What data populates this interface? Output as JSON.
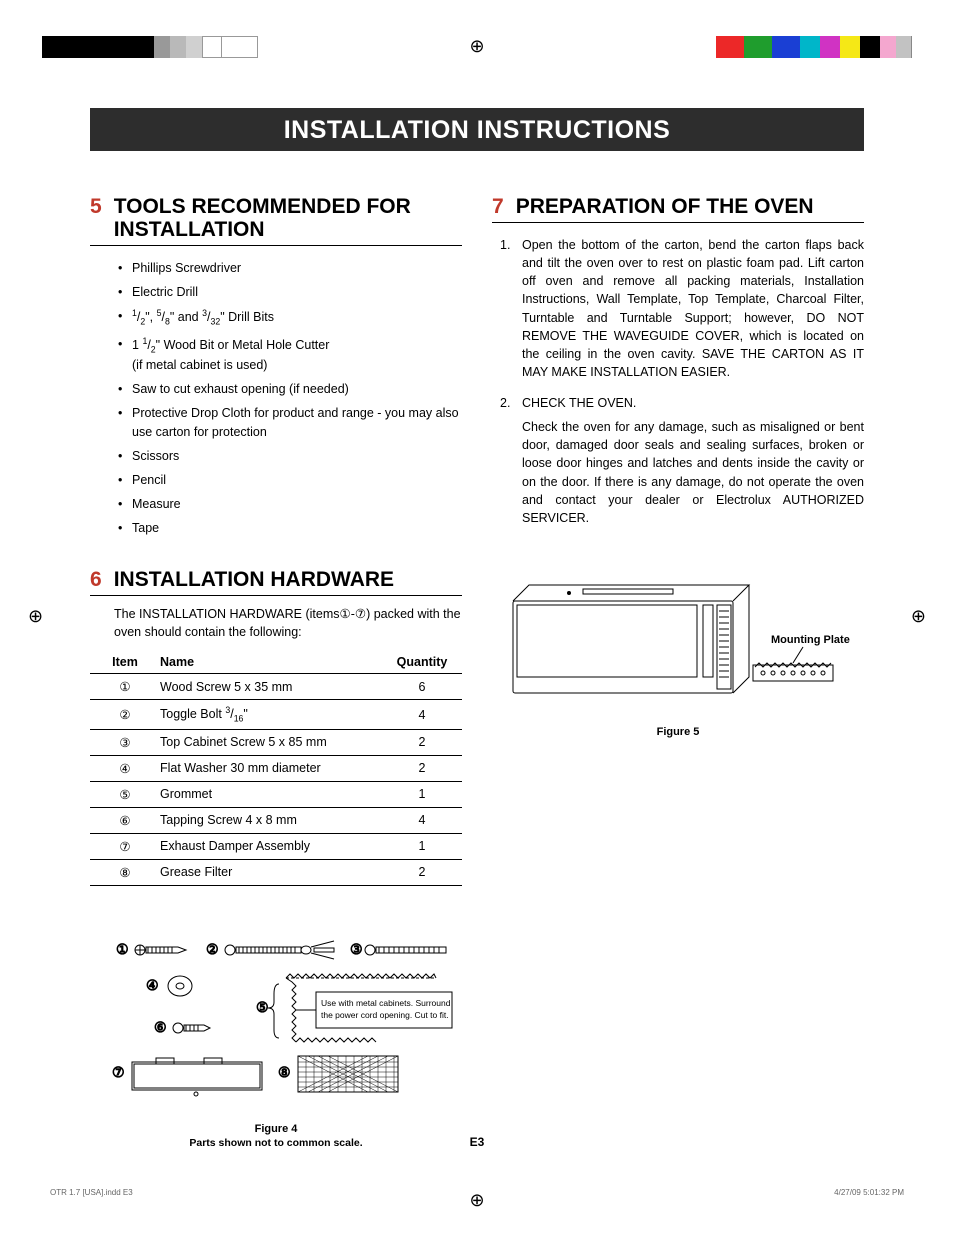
{
  "print_marks": {
    "left_colors": [
      "#000000",
      "#000000",
      "#000000",
      "#000000",
      "#999999",
      "#b9b9b9",
      "#d0d0d0",
      "#ffffff",
      "#ffffff"
    ],
    "left_widths": [
      28,
      28,
      28,
      28,
      16,
      16,
      16,
      20,
      20
    ],
    "right_colors": [
      "#ec2828",
      "#1f9d2d",
      "#1a3fd4",
      "#00b6c9",
      "#d033c3",
      "#f5e816",
      "#000000",
      "#f4a7cf",
      "#c2c2c2"
    ],
    "right_widths": [
      28,
      28,
      28,
      20,
      20,
      20,
      20,
      16,
      16
    ]
  },
  "page_header": "INSTALLATION INSTRUCTIONS",
  "section5": {
    "num": "5",
    "title": "TOOLS RECOMMENDED FOR INSTALLATION",
    "items": [
      "Phillips Screwdriver",
      "Electric Drill",
      "1/2\", 5/8\" and 3/32\" Drill Bits",
      "1 1/2\" Wood Bit or Metal Hole Cutter (if metal cabinet is used)",
      "Saw to cut exhaust opening (if needed)",
      "Protective Drop Cloth for product and range - you may also use carton for protection",
      "Scissors",
      "Pencil",
      "Measure",
      "Tape"
    ]
  },
  "section6": {
    "num": "6",
    "title": "INSTALLATION HARDWARE",
    "intro": "The INSTALLATION HARDWARE (items①-⑦) packed with the oven should contain the following:",
    "table": {
      "headers": [
        "Item",
        "Name",
        "Quantity"
      ],
      "rows": [
        [
          "①",
          "Wood Screw 5 x 35 mm",
          "6"
        ],
        [
          "②",
          "Toggle Bolt 3/16\"",
          "4"
        ],
        [
          "③",
          "Top Cabinet Screw 5 x 85 mm",
          "2"
        ],
        [
          "④",
          "Flat Washer 30 mm diameter",
          "2"
        ],
        [
          "⑤",
          "Grommet",
          "1"
        ],
        [
          "⑥",
          "Tapping Screw 4 x 8 mm",
          "4"
        ],
        [
          "⑦",
          "Exhaust Damper Assembly",
          "1"
        ],
        [
          "⑧",
          "Grease Filter",
          "2"
        ]
      ]
    }
  },
  "section7": {
    "num": "7",
    "title": "PREPARATION OF THE OVEN",
    "steps": [
      {
        "n": "1.",
        "text": "Open the bottom of the carton, bend the carton flaps back and tilt the oven over to rest on plastic foam pad. Lift carton off oven and remove all packing materials, Installation Instructions, Wall Template, Top Template, Charcoal Filter, Turntable and Turntable Support; however, DO NOT REMOVE THE WAVEGUIDE COVER, which is located on the ceiling in the oven cavity. SAVE THE CARTON AS IT MAY MAKE INSTALLATION EASIER."
      },
      {
        "n": "2.",
        "text": "CHECK THE OVEN.",
        "sub": "Check the oven for any damage, such as misaligned or bent door, damaged door seals and sealing surfaces, broken or loose door hinges and latches and dents inside the cavity or on the door. If there is any damage, do not operate the oven and contact your dealer or Electrolux AUTHORIZED SERVICER."
      }
    ]
  },
  "figure4": {
    "caption": "Figure 4",
    "subcaption": "Parts shown not to common scale.",
    "grommet_text1": "Use with metal cabinets. Surround",
    "grommet_text2": "the power cord opening. Cut to fit.",
    "labels": [
      "①",
      "②",
      "③",
      "④",
      "⑤",
      "⑥",
      "⑦",
      "⑧"
    ],
    "stroke": "#000000"
  },
  "figure5": {
    "caption": "Figure 5",
    "mounting_label": "Mounting Plate",
    "stroke": "#000000"
  },
  "footer": {
    "page": "E3",
    "left": "OTR 1.7 [USA].indd   E3",
    "right": "4/27/09   5:01:32 PM"
  }
}
